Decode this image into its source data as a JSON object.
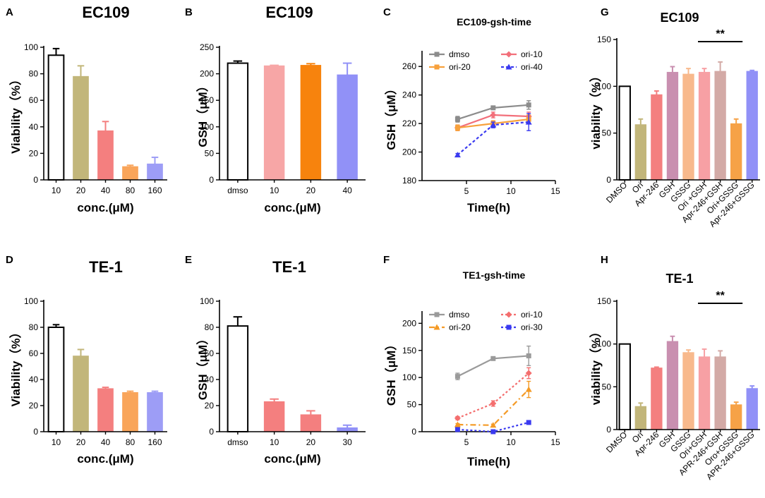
{
  "chart_data": [
    {
      "panel": "A",
      "type": "bar",
      "title": "EC109",
      "xlabel": "conc.(μM)",
      "ylabel": "Viability（%）",
      "ylim": [
        0,
        100
      ],
      "yticks": [
        0,
        20,
        40,
        60,
        80,
        100
      ],
      "categories": [
        "10",
        "20",
        "40",
        "80",
        "160"
      ],
      "values": [
        94,
        78,
        37,
        10,
        12
      ],
      "errors": [
        5,
        8,
        7,
        1,
        5
      ],
      "colors": [
        "#ffffff",
        "#c2b67a",
        "#f47f7f",
        "#f9a55a",
        "#9d9df6"
      ]
    },
    {
      "panel": "B",
      "type": "bar",
      "title": "EC109",
      "xlabel": "conc.(μM)",
      "ylabel": "GSH（μM）",
      "ylim": [
        0,
        250
      ],
      "yticks": [
        0,
        50,
        100,
        150,
        200,
        250
      ],
      "categories": [
        "dmso",
        "10",
        "20",
        "40"
      ],
      "values": [
        220,
        215,
        216,
        198
      ],
      "errors": [
        4,
        1,
        3,
        22
      ],
      "colors": [
        "#ffffff",
        "#f7a6a6",
        "#f7830d",
        "#9191f7"
      ]
    },
    {
      "panel": "C",
      "type": "line",
      "title": "EC109-gsh-time",
      "xlabel": "Time(h)",
      "ylabel": "GSH（μM）",
      "xlim": [
        0,
        15
      ],
      "ylim": [
        180,
        270
      ],
      "xticks": [
        5,
        10,
        15
      ],
      "yticks": [
        180,
        200,
        220,
        240,
        260
      ],
      "x": [
        4,
        8,
        12
      ],
      "series": [
        {
          "name": "dmso",
          "values": [
            223,
            231,
            233
          ],
          "errors": [
            2,
            1,
            3
          ],
          "color": "#8c8c8c",
          "dash": "",
          "marker": "square"
        },
        {
          "name": "ori-10",
          "values": [
            217,
            226,
            225
          ],
          "errors": [
            2,
            2,
            3
          ],
          "color": "#f26f7a",
          "dash": "",
          "marker": "diamond"
        },
        {
          "name": "ori-20",
          "values": [
            217,
            220,
            223
          ],
          "errors": [
            2,
            2,
            3
          ],
          "color": "#f7a13c",
          "dash": "",
          "marker": "square"
        },
        {
          "name": "ori-40",
          "values": [
            198,
            219,
            221
          ],
          "errors": [
            1,
            2,
            6
          ],
          "color": "#3a3af0",
          "dash": "4,3",
          "marker": "triangle"
        }
      ],
      "legend": "top"
    },
    {
      "panel": "G",
      "type": "bar",
      "title": "EC109",
      "xlabel": "",
      "ylabel": "viability（%）",
      "ylim": [
        0,
        150
      ],
      "yticks": [
        0,
        50,
        100,
        150
      ],
      "categories": [
        "DMSO",
        "Ori",
        "Apr-246",
        "GSH",
        "GSSG",
        "Ori +GSH",
        "Apr-246+GSH",
        "Ori+GSSG",
        "Apr-246+GSSG"
      ],
      "values": [
        100,
        59,
        91,
        115,
        113,
        115,
        116,
        60,
        116
      ],
      "errors": [
        0,
        6,
        4,
        6,
        6,
        4,
        10,
        5,
        1
      ],
      "colors": [
        "#ffffff",
        "#c2b67a",
        "#f47f7f",
        "#c98fb0",
        "#f8b98c",
        "#f7a0a4",
        "#d3aaa6",
        "#f6a247",
        "#9191f7"
      ],
      "significance": {
        "label": "**",
        "from": 5,
        "to": 7
      }
    },
    {
      "panel": "D",
      "type": "bar",
      "title": "TE-1",
      "xlabel": "conc.(μM)",
      "ylabel": "Viability（%）",
      "ylim": [
        0,
        100
      ],
      "yticks": [
        0,
        20,
        40,
        60,
        80,
        100
      ],
      "categories": [
        "10",
        "20",
        "40",
        "80",
        "160"
      ],
      "values": [
        80,
        58,
        33,
        30,
        30
      ],
      "errors": [
        2,
        5,
        1,
        1,
        1
      ],
      "colors": [
        "#ffffff",
        "#c2b67a",
        "#f47f7f",
        "#f9a55a",
        "#9d9df6"
      ]
    },
    {
      "panel": "E",
      "type": "bar",
      "title": "TE-1",
      "xlabel": "conc.(μM)",
      "ylabel": "GSH（μM）",
      "ylim": [
        0,
        100
      ],
      "yticks": [
        0,
        20,
        40,
        60,
        80,
        100
      ],
      "categories": [
        "dmso",
        "10",
        "20",
        "30"
      ],
      "values": [
        81,
        23,
        13,
        3
      ],
      "errors": [
        7,
        2,
        3,
        2
      ],
      "colors": [
        "#ffffff",
        "#f47f7f",
        "#f47f7f",
        "#9191f7"
      ]
    },
    {
      "panel": "F",
      "type": "line",
      "title": "TE1-gsh-time",
      "xlabel": "Time(h)",
      "ylabel": "GSH（μM）",
      "xlim": [
        0,
        15
      ],
      "ylim": [
        0,
        220
      ],
      "xticks": [
        5,
        10,
        15
      ],
      "yticks": [
        0,
        50,
        100,
        150,
        200
      ],
      "x": [
        4,
        8,
        12
      ],
      "series": [
        {
          "name": "dmso",
          "values": [
            102,
            135,
            140
          ],
          "errors": [
            6,
            2,
            18
          ],
          "color": "#9a9a9a",
          "dash": "",
          "marker": "square"
        },
        {
          "name": "ori-10",
          "values": [
            25,
            52,
            108
          ],
          "errors": [
            3,
            5,
            10
          ],
          "color": "#f46e6e",
          "dash": "3,3",
          "marker": "diamond"
        },
        {
          "name": "ori-20",
          "values": [
            13,
            12,
            78
          ],
          "errors": [
            2,
            2,
            15
          ],
          "color": "#f49a25",
          "dash": "8,4,2,4",
          "marker": "triangle"
        },
        {
          "name": "ori-30",
          "values": [
            4,
            0,
            17
          ],
          "errors": [
            2,
            1,
            3
          ],
          "color": "#3a3af0",
          "dash": "3,3",
          "marker": "square"
        }
      ],
      "legend": "top"
    },
    {
      "panel": "H",
      "type": "bar",
      "title": "TE-1",
      "xlabel": "",
      "ylabel": "viability（%）",
      "ylim": [
        0,
        150
      ],
      "yticks": [
        0,
        50,
        100,
        150
      ],
      "categories": [
        "DMSO",
        "Ori",
        "Apr-246",
        "GSH",
        "GSSG",
        "Ori+GSH",
        "APR-246+GSH",
        "Oro+GSSG",
        "APR-246+GSSG"
      ],
      "values": [
        100,
        27,
        72,
        103,
        90,
        85,
        85,
        29,
        48
      ],
      "errors": [
        0,
        4,
        1,
        6,
        3,
        9,
        7,
        3,
        3
      ],
      "colors": [
        "#ffffff",
        "#c2b67a",
        "#f47f7f",
        "#c98fb0",
        "#f8b98c",
        "#f7a0a4",
        "#d3aaa6",
        "#f6a247",
        "#9191f7"
      ],
      "significance": {
        "label": "**",
        "from": 5,
        "to": 7
      }
    }
  ]
}
